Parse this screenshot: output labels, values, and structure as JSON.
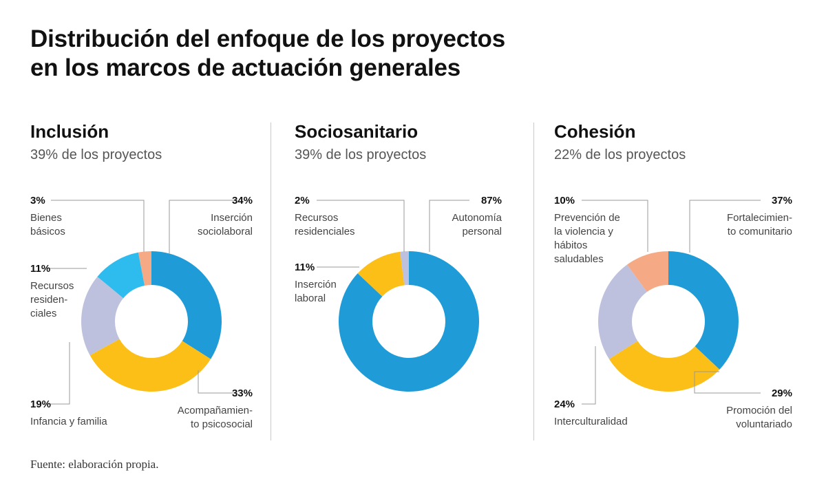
{
  "title_line1": "Distribución del enfoque de los proyectos",
  "title_line2": "en los marcos de actuación generales",
  "source": "Fuente: elaboración propia.",
  "colors": {
    "blue": "#1f9bd7",
    "yellow": "#fbbf18",
    "lavender": "#bec1de",
    "lightblue": "#2ebcef",
    "salmon": "#f5aa85",
    "leader": "#9a9a9a"
  },
  "chart_data": [
    {
      "type": "pie",
      "title": "Inclusión",
      "subtitle": "39% de los proyectos",
      "slices": [
        {
          "name": "Inserción sociolaboral",
          "label_lines": [
            "Inserción",
            "sociolaboral"
          ],
          "value": 34,
          "pct": "34%",
          "color": "blue"
        },
        {
          "name": "Acompañamiento psicosocial",
          "label_lines": [
            "Acompañamien-",
            "to psicosocial"
          ],
          "value": 33,
          "pct": "33%",
          "color": "yellow"
        },
        {
          "name": "Infancia y familia",
          "label_lines": [
            "Infancia y familia"
          ],
          "value": 19,
          "pct": "19%",
          "color": "lavender"
        },
        {
          "name": "Recursos residenciales",
          "label_lines": [
            "Recursos",
            "residen-",
            "ciales"
          ],
          "value": 11,
          "pct": "11%",
          "color": "lightblue"
        },
        {
          "name": "Bienes básicos",
          "label_lines": [
            "Bienes",
            "básicos"
          ],
          "value": 3,
          "pct": "3%",
          "color": "salmon"
        }
      ]
    },
    {
      "type": "pie",
      "title": "Sociosanitario",
      "subtitle": "39% de los proyectos",
      "slices": [
        {
          "name": "Autonomía personal",
          "label_lines": [
            "Autonomía",
            "personal"
          ],
          "value": 87,
          "pct": "87%",
          "color": "blue"
        },
        {
          "name": "Inserción laboral",
          "label_lines": [
            "Inserción",
            "laboral"
          ],
          "value": 11,
          "pct": "11%",
          "color": "yellow"
        },
        {
          "name": "Recursos residenciales",
          "label_lines": [
            "Recursos",
            "residenciales"
          ],
          "value": 2,
          "pct": "2%",
          "color": "lavender"
        }
      ]
    },
    {
      "type": "pie",
      "title": "Cohesión",
      "subtitle": "22% de los proyectos",
      "slices": [
        {
          "name": "Fortalecimiento comunitario",
          "label_lines": [
            "Fortalecimien-",
            "to comunitario"
          ],
          "value": 37,
          "pct": "37%",
          "color": "blue"
        },
        {
          "name": "Promoción del voluntariado",
          "label_lines": [
            "Promoción del",
            "voluntariado"
          ],
          "value": 29,
          "pct": "29%",
          "color": "yellow"
        },
        {
          "name": "Interculturalidad",
          "label_lines": [
            "Interculturalidad"
          ],
          "value": 24,
          "pct": "24%",
          "color": "lavender"
        },
        {
          "name": "Prevención de la violencia y hábitos saludables",
          "label_lines": [
            "Prevención de",
            "la violencia y",
            "hábitos",
            "saludables"
          ],
          "value": 10,
          "pct": "10%",
          "color": "salmon"
        }
      ]
    }
  ]
}
